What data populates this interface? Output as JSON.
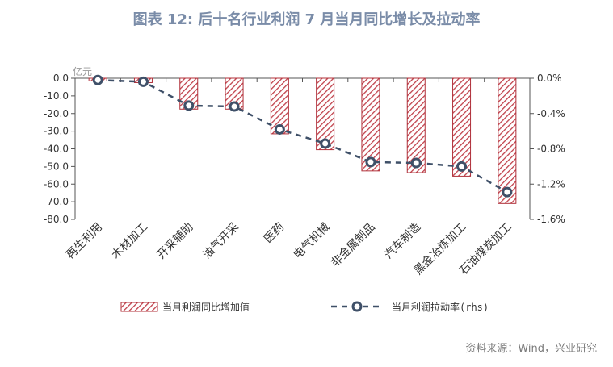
{
  "title": "图表 12: 后十名行业利润 7 月当月同比增长及拉动率",
  "source": "资料来源：Wind，兴业研究",
  "colors": {
    "title": "#7a8ca8",
    "bar_stroke": "#b0303a",
    "bar_hatch": "#c0404a",
    "line": "#3f5068",
    "axis": "#555555",
    "text": "#333333"
  },
  "chart_data": {
    "type": "bar",
    "categories": [
      "再生利用",
      "木材加工",
      "开采辅助",
      "油气开采",
      "医药",
      "电气机械",
      "非金属制品",
      "汽车制造",
      "黑金冶炼加工",
      "石油煤炭加工"
    ],
    "series": [
      {
        "name": "当月利润同比增加值",
        "type": "bar",
        "axis": "left",
        "values": [
          -1.6,
          -2.5,
          -17.5,
          -17.5,
          -31.5,
          -40.5,
          -52.5,
          -53.5,
          -55.5,
          -71
        ]
      },
      {
        "name": "当月利润拉动率(rhs)",
        "type": "line",
        "axis": "right",
        "values": [
          -0.02,
          -0.04,
          -0.31,
          -0.32,
          -0.58,
          -0.74,
          -0.95,
          -0.96,
          -1.0,
          -1.29
        ]
      }
    ],
    "left_axis": {
      "unit_label": "亿元",
      "ylim": [
        -80,
        0
      ],
      "ticks": [
        0,
        -10,
        -20,
        -30,
        -40,
        -50,
        -60,
        -70,
        -80
      ],
      "tick_labels": [
        "0.0",
        "-10.0",
        "-20.0",
        "-30.0",
        "-40.0",
        "-50.0",
        "-60.0",
        "-70.0",
        "-80.0"
      ]
    },
    "right_axis": {
      "ylim": [
        -1.6,
        0
      ],
      "ticks": [
        0,
        -0.4,
        -0.8,
        -1.2,
        -1.6
      ],
      "tick_labels": [
        "0.0%",
        "-0.4%",
        "-0.8%",
        "-1.2%",
        "-1.6%"
      ]
    },
    "legend_position": "bottom",
    "grid": false
  }
}
